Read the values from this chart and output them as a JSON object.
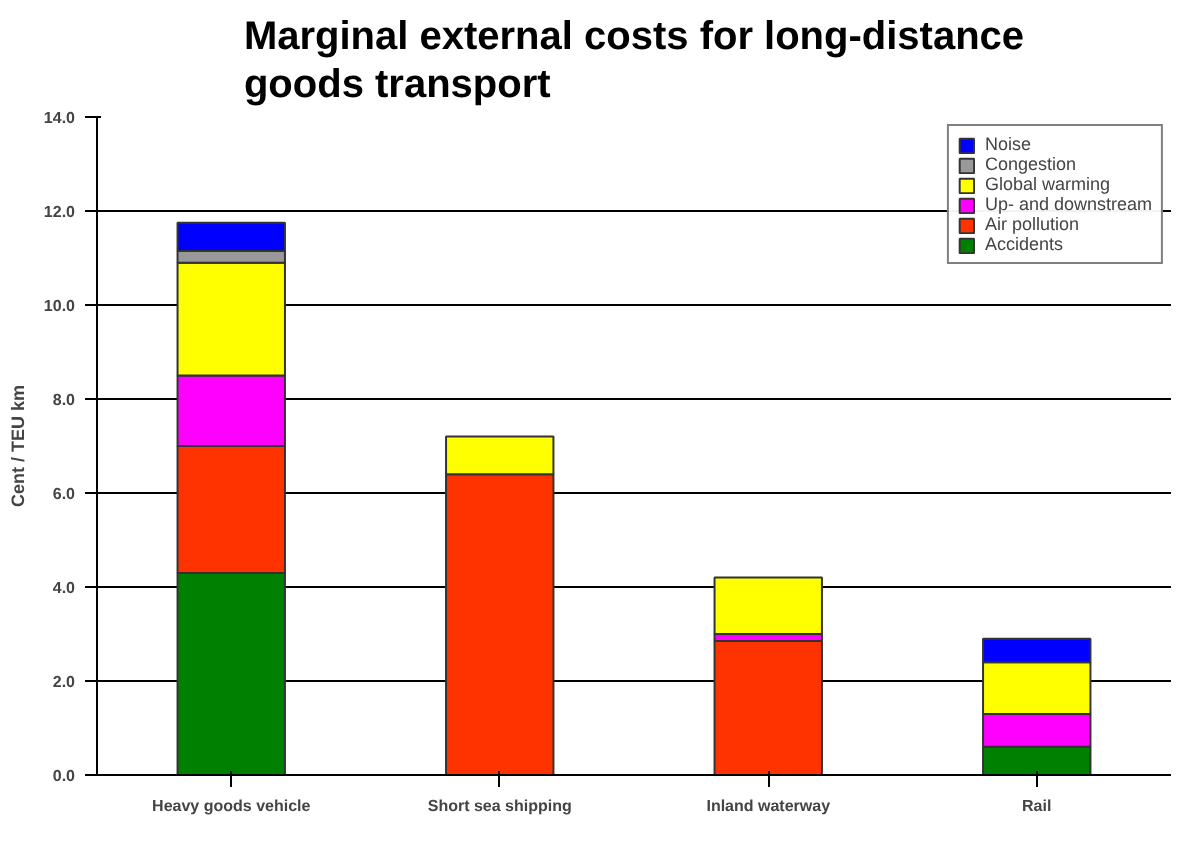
{
  "chart_data": {
    "type": "bar",
    "stacked": true,
    "title": "Marginal external costs for long-distance\ngoods transport",
    "ylabel": "Cent / TEU km",
    "categories": [
      "Heavy goods vehicle",
      "Short sea shipping",
      "Inland waterway",
      "Rail"
    ],
    "series": [
      {
        "name": "Accidents",
        "color": "#008000",
        "values": [
          4.3,
          null,
          null,
          0.6
        ]
      },
      {
        "name": "Air pollution",
        "color": "#ff3300",
        "values": [
          2.7,
          6.4,
          2.85,
          null
        ]
      },
      {
        "name": "Up- and downstream",
        "color": "#ff00ff",
        "values": [
          1.5,
          null,
          0.15,
          0.7
        ]
      },
      {
        "name": "Global warming",
        "color": "#ffff00",
        "values": [
          2.4,
          0.8,
          1.2,
          1.1
        ]
      },
      {
        "name": "Congestion",
        "color": "#999999",
        "values": [
          0.25,
          null,
          null,
          null
        ]
      },
      {
        "name": "Noise",
        "color": "#0000ff",
        "values": [
          0.6,
          null,
          null,
          0.5
        ]
      }
    ],
    "ylim": [
      0,
      14
    ],
    "yticks": [
      {
        "value": 0,
        "label": "0.0"
      },
      {
        "value": 2,
        "label": "2.0"
      },
      {
        "value": 4,
        "label": "4.0"
      },
      {
        "value": 6,
        "label": "6.0"
      },
      {
        "value": 8,
        "label": "8.0"
      },
      {
        "value": 10,
        "label": "10.0"
      },
      {
        "value": 12,
        "label": "12.0"
      },
      {
        "value": 14,
        "label": "14.0"
      }
    ],
    "grid": "y",
    "legend": "top right"
  }
}
